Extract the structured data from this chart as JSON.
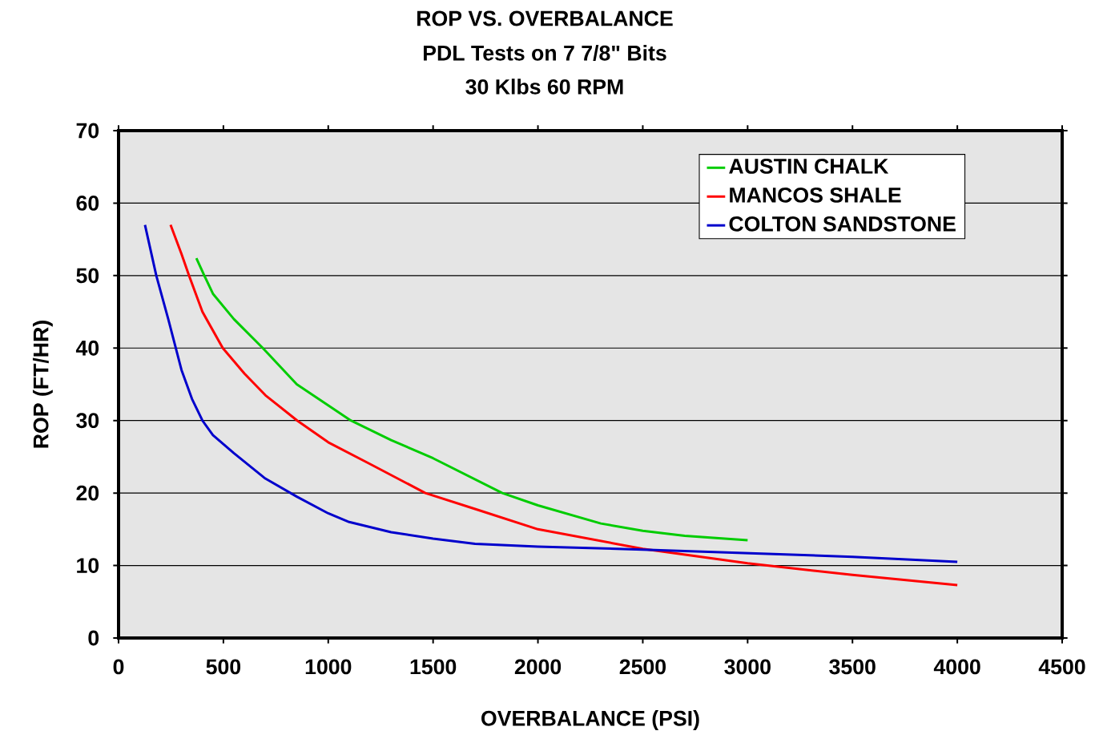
{
  "chart_data": {
    "type": "line",
    "title": "ROP VS. OVERBALANCE",
    "subtitle": "PDL Tests on 7 7/8\" Bits",
    "annotations": [
      "30 Klbs 60 RPM"
    ],
    "xlabel": "OVERBALANCE (PSI)",
    "ylabel": "ROP (FT/HR)",
    "xlim": [
      0,
      4500
    ],
    "xticks": [
      0,
      500,
      1000,
      1500,
      2000,
      2500,
      3000,
      3500,
      4000,
      4500
    ],
    "ylim": [
      0,
      70
    ],
    "yticks": [
      0,
      10,
      20,
      30,
      40,
      50,
      60,
      70
    ],
    "grid": "y",
    "legend": "top right",
    "marker": "none",
    "line_style": "solid",
    "series": [
      {
        "name": "AUSTIN CHALK",
        "color": "#00cc00",
        "x": [
          371,
          409,
          450,
          550,
          688,
          850,
          1108,
          1300,
          1500,
          1830,
          2000,
          2300,
          2500,
          2700,
          3000
        ],
        "values": [
          52.4,
          50,
          47.5,
          44,
          40,
          35,
          30,
          27.3,
          24.8,
          20,
          18.3,
          15.8,
          14.8,
          14.1,
          13.5
        ]
      },
      {
        "name": "MANCOS SHALE",
        "color": "#ff0000",
        "x": [
          248,
          300,
          336,
          400,
          497,
          600,
          700,
          852,
          1000,
          1200,
          1463,
          1700,
          2000,
          2500,
          3000,
          3500,
          4000
        ],
        "values": [
          57,
          53,
          50,
          45,
          40,
          36.5,
          33.5,
          30,
          27,
          24,
          20,
          17.8,
          15,
          12.3,
          10.3,
          8.7,
          7.3
        ]
      },
      {
        "name": "COLTON SANDSTONE",
        "color": "#0000cc",
        "x": [
          126,
          180,
          237,
          300,
          350,
          400,
          450,
          550,
          700,
          850,
          1000,
          1100,
          1300,
          1500,
          1700,
          2000,
          2500,
          3000,
          3500,
          4000
        ],
        "values": [
          57,
          50,
          44,
          37,
          33,
          30,
          28,
          25.5,
          22,
          19.5,
          17.2,
          16,
          14.6,
          13.7,
          13,
          12.6,
          12.2,
          11.7,
          11.2,
          10.5
        ]
      }
    ]
  }
}
